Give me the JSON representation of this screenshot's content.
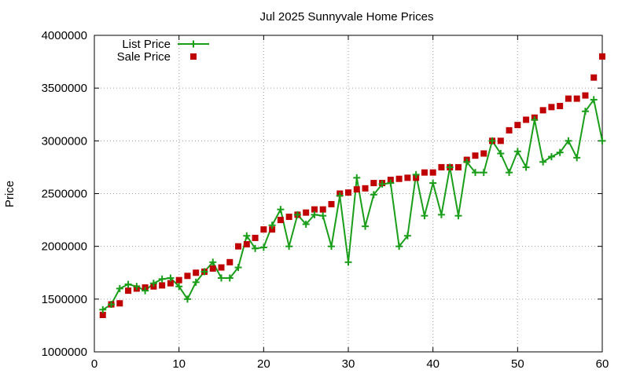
{
  "chart_data": {
    "type": "line",
    "title": "Jul 2025 Sunnyvale Home Prices",
    "xlabel": "",
    "ylabel": "Price",
    "xlim": [
      0,
      60
    ],
    "ylim": [
      1000000,
      4000000
    ],
    "xticks": [
      0,
      10,
      20,
      30,
      40,
      50,
      60
    ],
    "yticks": [
      1000000,
      1500000,
      2000000,
      2500000,
      3000000,
      3500000,
      4000000
    ],
    "grid": true,
    "legend_position": "top-left",
    "series": [
      {
        "name": "List Price",
        "style": "line-with-plus-markers",
        "color": "#1a9e1a",
        "x": [
          1,
          2,
          3,
          4,
          5,
          6,
          7,
          8,
          9,
          10,
          11,
          12,
          13,
          14,
          15,
          16,
          17,
          18,
          19,
          20,
          21,
          22,
          23,
          24,
          25,
          26,
          27,
          28,
          29,
          30,
          31,
          32,
          33,
          34,
          35,
          36,
          37,
          38,
          39,
          40,
          41,
          42,
          43,
          44,
          45,
          46,
          47,
          48,
          49,
          50,
          51,
          52,
          53,
          54,
          55,
          56,
          57,
          58,
          59,
          60
        ],
        "values": [
          1400000,
          1450000,
          1600000,
          1640000,
          1620000,
          1580000,
          1650000,
          1690000,
          1700000,
          1620000,
          1500000,
          1660000,
          1760000,
          1850000,
          1700000,
          1700000,
          1800000,
          2100000,
          1980000,
          1990000,
          2200000,
          2350000,
          2000000,
          2300000,
          2210000,
          2300000,
          2290000,
          2000000,
          2480000,
          1850000,
          2650000,
          2190000,
          2490000,
          2590000,
          2600000,
          2000000,
          2100000,
          2680000,
          2290000,
          2600000,
          2300000,
          2750000,
          2290000,
          2800000,
          2700000,
          2700000,
          3000000,
          2880000,
          2700000,
          2900000,
          2750000,
          3200000,
          2800000,
          2850000,
          2890000,
          3000000,
          2840000,
          3280000,
          3390000,
          3000000
        ]
      },
      {
        "name": "Sale Price",
        "style": "square-markers",
        "color": "#c00000",
        "x": [
          1,
          2,
          3,
          4,
          5,
          6,
          7,
          8,
          9,
          10,
          11,
          12,
          13,
          14,
          15,
          16,
          17,
          18,
          19,
          20,
          21,
          22,
          23,
          24,
          25,
          26,
          27,
          28,
          29,
          30,
          31,
          32,
          33,
          34,
          35,
          36,
          37,
          38,
          39,
          40,
          41,
          42,
          43,
          44,
          45,
          46,
          47,
          48,
          49,
          50,
          51,
          52,
          53,
          54,
          55,
          56,
          57,
          58,
          59,
          60
        ],
        "values": [
          1350000,
          1450000,
          1460000,
          1580000,
          1600000,
          1610000,
          1620000,
          1630000,
          1650000,
          1680000,
          1720000,
          1750000,
          1760000,
          1790000,
          1800000,
          1850000,
          2000000,
          2020000,
          2080000,
          2160000,
          2160000,
          2250000,
          2280000,
          2300000,
          2320000,
          2350000,
          2350000,
          2400000,
          2500000,
          2510000,
          2540000,
          2550000,
          2600000,
          2600000,
          2630000,
          2640000,
          2650000,
          2650000,
          2700000,
          2700000,
          2750000,
          2750000,
          2750000,
          2820000,
          2860000,
          2880000,
          3000000,
          3000000,
          3100000,
          3150000,
          3200000,
          3220000,
          3290000,
          3320000,
          3330000,
          3400000,
          3400000,
          3430000,
          3600000,
          3800000
        ]
      }
    ]
  }
}
